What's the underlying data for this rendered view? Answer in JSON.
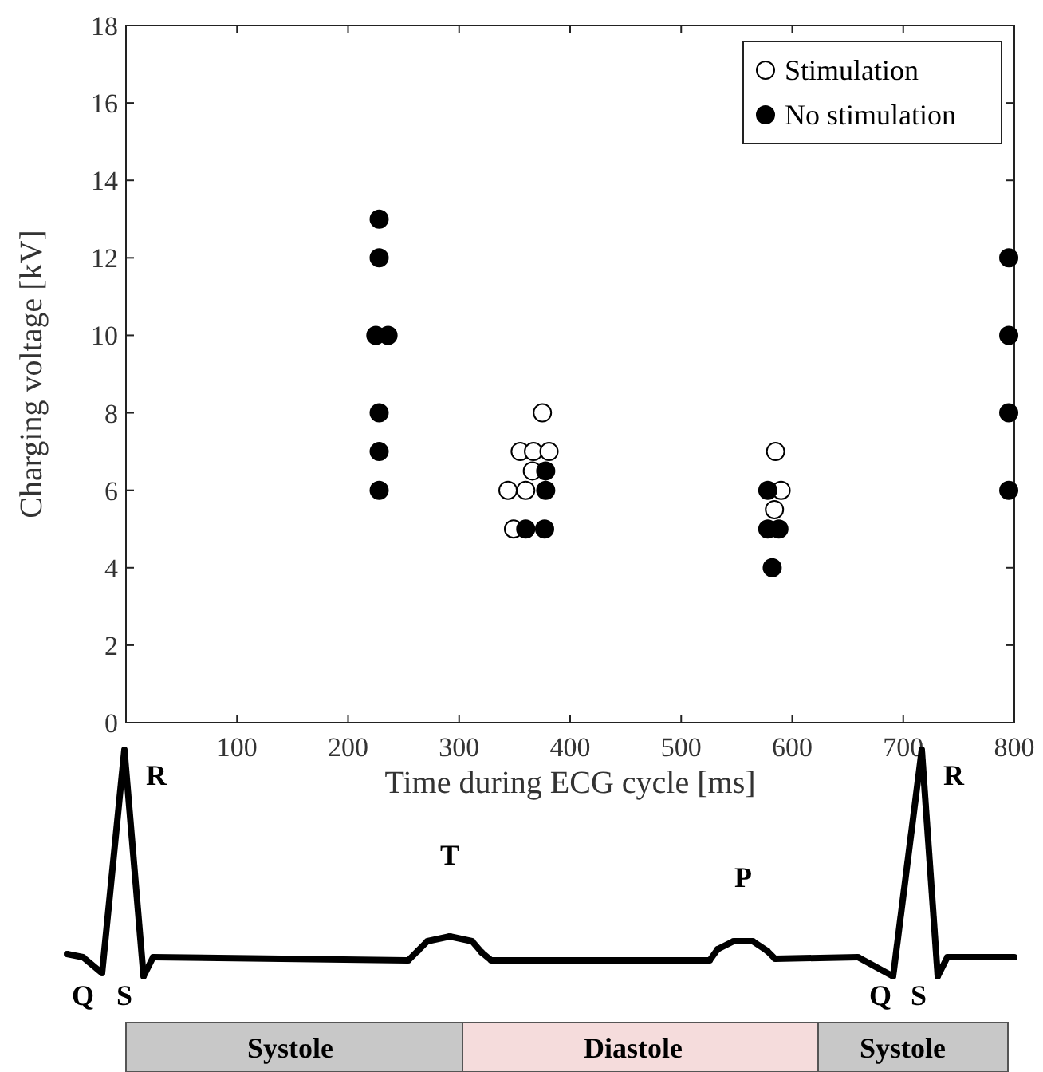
{
  "chart_data": {
    "type": "scatter",
    "xlabel": "Time during ECG cycle [ms]",
    "ylabel": "Charging voltage [kV]",
    "xlim": [
      0,
      800
    ],
    "xticks": [
      100,
      200,
      300,
      400,
      500,
      600,
      700,
      800
    ],
    "ylim": [
      0,
      18
    ],
    "yticks": [
      0,
      2,
      4,
      6,
      8,
      10,
      12,
      14,
      16,
      18
    ],
    "grid": false,
    "legend": "top right",
    "marker": "circle",
    "series": [
      {
        "name": "Stimulation",
        "color": "#ffffff",
        "x": [
          375,
          355,
          367,
          381,
          344,
          360,
          366,
          349,
          585,
          590,
          584
        ],
        "values": [
          8,
          7,
          7,
          7,
          6,
          6,
          6.5,
          5,
          7,
          6,
          5.5
        ]
      },
      {
        "name": "No stimulation",
        "color": "#000000",
        "x": [
          228,
          228,
          225,
          236,
          228,
          228,
          228,
          360,
          377,
          378,
          378,
          578,
          578,
          588,
          582,
          795,
          795,
          795,
          795
        ],
        "values": [
          13,
          12,
          10,
          10,
          8,
          7,
          6,
          5,
          5,
          6.5,
          6,
          6,
          5,
          5,
          4,
          12,
          10,
          8,
          6
        ]
      }
    ],
    "annotations": [
      "R",
      "Q",
      "S",
      "T",
      "P",
      "R",
      "Q",
      "S",
      "Systole",
      "Diastole",
      "Systole"
    ]
  }
}
